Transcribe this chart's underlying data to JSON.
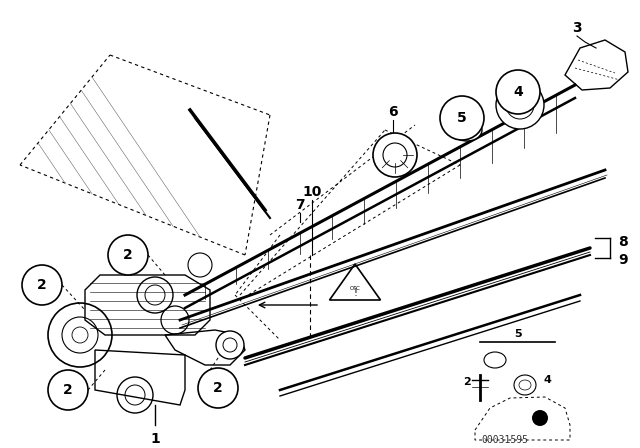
{
  "bg_color": "#ffffff",
  "line_color": "#000000",
  "diagram_id": "00031595",
  "fig_width": 6.4,
  "fig_height": 4.48,
  "dpi": 100,
  "xlim": [
    0,
    640
  ],
  "ylim": [
    0,
    448
  ]
}
